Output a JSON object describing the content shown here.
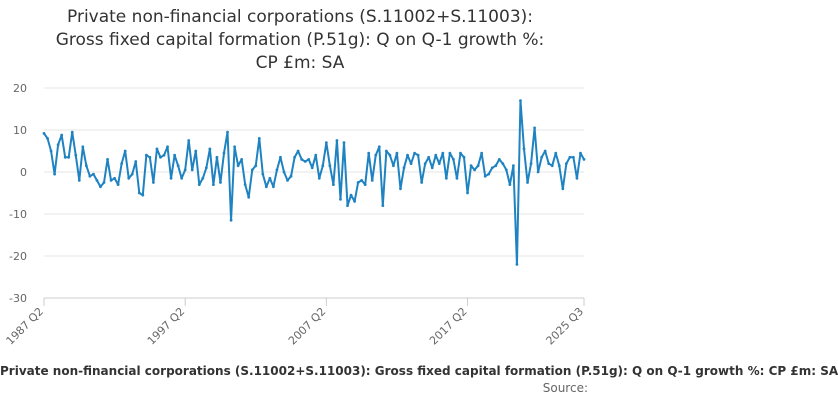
{
  "chart_data": {
    "type": "line",
    "title_lines": [
      "Private non-financial corporations (S.11002+S.11003):",
      "Gross fixed capital formation (P.51g): Q on Q-1 growth %:",
      "CP £m: SA"
    ],
    "xlabel": "",
    "ylabel": "",
    "ylim": [
      -30,
      20
    ],
    "y_ticks": [
      20,
      10,
      0,
      -10,
      -20,
      -30
    ],
    "x_tick_labels": [
      "1987 Q2",
      "1997 Q2",
      "2007 Q2",
      "2017 Q2",
      "2025 Q3"
    ],
    "grid": true,
    "legend_position": "bottom",
    "series": [
      {
        "name": "Private non-financial corporations (S.11002+S.11003): Gross fixed capital formation (P.51g): Q on Q-1 growth %: CP £m: SA",
        "color": "#1f83c1",
        "points": [
          {
            "q": "1987 Q2",
            "v": 9.2
          },
          {
            "q": "1987 Q3",
            "v": 8.0
          },
          {
            "q": "1987 Q4",
            "v": 5.0
          },
          {
            "q": "1988 Q1",
            "v": -0.5
          },
          {
            "q": "1988 Q2",
            "v": 6.5
          },
          {
            "q": "1988 Q3",
            "v": 8.8
          },
          {
            "q": "1988 Q4",
            "v": 3.5
          },
          {
            "q": "1989 Q1",
            "v": 3.5
          },
          {
            "q": "1989 Q2",
            "v": 9.5
          },
          {
            "q": "1989 Q3",
            "v": 4.0
          },
          {
            "q": "1989 Q4",
            "v": -2.0
          },
          {
            "q": "1990 Q1",
            "v": 6.0
          },
          {
            "q": "1990 Q2",
            "v": 1.5
          },
          {
            "q": "1990 Q3",
            "v": -1.0
          },
          {
            "q": "1990 Q4",
            "v": -0.5
          },
          {
            "q": "1991 Q1",
            "v": -2.0
          },
          {
            "q": "1991 Q2",
            "v": -3.5
          },
          {
            "q": "1991 Q3",
            "v": -2.5
          },
          {
            "q": "1991 Q4",
            "v": 3.0
          },
          {
            "q": "1992 Q1",
            "v": -2.0
          },
          {
            "q": "1992 Q2",
            "v": -1.5
          },
          {
            "q": "1992 Q3",
            "v": -3.0
          },
          {
            "q": "1992 Q4",
            "v": 2.0
          },
          {
            "q": "1993 Q1",
            "v": 5.0
          },
          {
            "q": "1993 Q2",
            "v": -1.5
          },
          {
            "q": "1993 Q3",
            "v": -0.5
          },
          {
            "q": "1993 Q4",
            "v": 2.5
          },
          {
            "q": "1994 Q1",
            "v": -5.0
          },
          {
            "q": "1994 Q2",
            "v": -5.5
          },
          {
            "q": "1994 Q3",
            "v": 4.0
          },
          {
            "q": "1994 Q4",
            "v": 3.5
          },
          {
            "q": "1995 Q1",
            "v": -2.5
          },
          {
            "q": "1995 Q2",
            "v": 5.5
          },
          {
            "q": "1995 Q3",
            "v": 3.5
          },
          {
            "q": "1995 Q4",
            "v": 4.0
          },
          {
            "q": "1996 Q1",
            "v": 6.0
          },
          {
            "q": "1996 Q2",
            "v": -1.5
          },
          {
            "q": "1996 Q3",
            "v": 4.0
          },
          {
            "q": "1996 Q4",
            "v": 1.5
          },
          {
            "q": "1997 Q1",
            "v": -1.5
          },
          {
            "q": "1997 Q2",
            "v": 0.5
          },
          {
            "q": "1997 Q3",
            "v": 7.5
          },
          {
            "q": "1997 Q4",
            "v": 0.5
          },
          {
            "q": "1998 Q1",
            "v": 5.0
          },
          {
            "q": "1998 Q2",
            "v": -3.0
          },
          {
            "q": "1998 Q3",
            "v": -1.5
          },
          {
            "q": "1998 Q4",
            "v": 1.0
          },
          {
            "q": "1999 Q1",
            "v": 5.5
          },
          {
            "q": "1999 Q2",
            "v": -3.0
          },
          {
            "q": "1999 Q3",
            "v": 3.5
          },
          {
            "q": "1999 Q4",
            "v": -2.5
          },
          {
            "q": "2000 Q1",
            "v": 4.5
          },
          {
            "q": "2000 Q2",
            "v": 9.5
          },
          {
            "q": "2000 Q3",
            "v": -11.5
          },
          {
            "q": "2000 Q4",
            "v": 6.0
          },
          {
            "q": "2001 Q1",
            "v": 1.5
          },
          {
            "q": "2001 Q2",
            "v": 3.0
          },
          {
            "q": "2001 Q3",
            "v": -3.0
          },
          {
            "q": "2001 Q4",
            "v": -6.0
          },
          {
            "q": "2002 Q1",
            "v": 0.5
          },
          {
            "q": "2002 Q2",
            "v": 1.5
          },
          {
            "q": "2002 Q3",
            "v": 8.0
          },
          {
            "q": "2002 Q4",
            "v": -0.5
          },
          {
            "q": "2003 Q1",
            "v": -3.5
          },
          {
            "q": "2003 Q2",
            "v": -1.5
          },
          {
            "q": "2003 Q3",
            "v": -3.5
          },
          {
            "q": "2003 Q4",
            "v": 0.5
          },
          {
            "q": "2004 Q1",
            "v": 3.5
          },
          {
            "q": "2004 Q2",
            "v": 0.0
          },
          {
            "q": "2004 Q3",
            "v": -2.0
          },
          {
            "q": "2004 Q4",
            "v": -1.0
          },
          {
            "q": "2005 Q1",
            "v": 3.5
          },
          {
            "q": "2005 Q2",
            "v": 5.0
          },
          {
            "q": "2005 Q3",
            "v": 3.0
          },
          {
            "q": "2005 Q4",
            "v": 2.5
          },
          {
            "q": "2006 Q1",
            "v": 3.0
          },
          {
            "q": "2006 Q2",
            "v": 1.0
          },
          {
            "q": "2006 Q3",
            "v": 4.0
          },
          {
            "q": "2006 Q4",
            "v": -1.5
          },
          {
            "q": "2007 Q1",
            "v": 1.5
          },
          {
            "q": "2007 Q2",
            "v": 7.0
          },
          {
            "q": "2007 Q3",
            "v": 1.5
          },
          {
            "q": "2007 Q4",
            "v": -3.0
          },
          {
            "q": "2008 Q1",
            "v": 7.5
          },
          {
            "q": "2008 Q2",
            "v": -6.5
          },
          {
            "q": "2008 Q3",
            "v": 7.0
          },
          {
            "q": "2008 Q4",
            "v": -8.0
          },
          {
            "q": "2009 Q1",
            "v": -5.5
          },
          {
            "q": "2009 Q2",
            "v": -7.0
          },
          {
            "q": "2009 Q3",
            "v": -2.5
          },
          {
            "q": "2009 Q4",
            "v": -2.0
          },
          {
            "q": "2010 Q1",
            "v": -3.0
          },
          {
            "q": "2010 Q2",
            "v": 4.5
          },
          {
            "q": "2010 Q3",
            "v": -2.0
          },
          {
            "q": "2010 Q4",
            "v": 4.0
          },
          {
            "q": "2011 Q1",
            "v": 6.0
          },
          {
            "q": "2011 Q2",
            "v": -8.0
          },
          {
            "q": "2011 Q3",
            "v": 5.0
          },
          {
            "q": "2011 Q4",
            "v": 4.0
          },
          {
            "q": "2012 Q1",
            "v": 1.5
          },
          {
            "q": "2012 Q2",
            "v": 4.5
          },
          {
            "q": "2012 Q3",
            "v": -4.0
          },
          {
            "q": "2012 Q4",
            "v": 1.0
          },
          {
            "q": "2013 Q1",
            "v": 4.0
          },
          {
            "q": "2013 Q2",
            "v": 2.0
          },
          {
            "q": "2013 Q3",
            "v": 4.5
          },
          {
            "q": "2013 Q4",
            "v": 4.0
          },
          {
            "q": "2014 Q1",
            "v": -2.5
          },
          {
            "q": "2014 Q2",
            "v": 2.0
          },
          {
            "q": "2014 Q3",
            "v": 3.5
          },
          {
            "q": "2014 Q4",
            "v": 1.0
          },
          {
            "q": "2015 Q1",
            "v": 4.0
          },
          {
            "q": "2015 Q2",
            "v": 2.0
          },
          {
            "q": "2015 Q3",
            "v": 4.5
          },
          {
            "q": "2015 Q4",
            "v": -1.5
          },
          {
            "q": "2016 Q1",
            "v": 4.5
          },
          {
            "q": "2016 Q2",
            "v": 3.0
          },
          {
            "q": "2016 Q3",
            "v": -1.5
          },
          {
            "q": "2016 Q4",
            "v": 4.5
          },
          {
            "q": "2017 Q1",
            "v": 3.5
          },
          {
            "q": "2017 Q2",
            "v": -5.0
          },
          {
            "q": "2017 Q3",
            "v": 1.5
          },
          {
            "q": "2017 Q4",
            "v": 0.5
          },
          {
            "q": "2018 Q1",
            "v": 1.5
          },
          {
            "q": "2018 Q2",
            "v": 4.5
          },
          {
            "q": "2018 Q3",
            "v": -1.0
          },
          {
            "q": "2018 Q4",
            "v": -0.5
          },
          {
            "q": "2019 Q1",
            "v": 1.0
          },
          {
            "q": "2019 Q2",
            "v": 1.5
          },
          {
            "q": "2019 Q3",
            "v": 3.0
          },
          {
            "q": "2019 Q4",
            "v": 2.0
          },
          {
            "q": "2020 Q1",
            "v": 0.5
          },
          {
            "q": "2020 Q2",
            "v": -3.0
          },
          {
            "q": "2020 Q3",
            "v": 1.5
          },
          {
            "q": "2020 Q4",
            "v": -22.0
          },
          {
            "q": "2021 Q1",
            "v": 17.0
          },
          {
            "q": "2021 Q2",
            "v": 5.5
          },
          {
            "q": "2021 Q3",
            "v": -2.5
          },
          {
            "q": "2021 Q4",
            "v": 2.0
          },
          {
            "q": "2022 Q1",
            "v": 10.5
          },
          {
            "q": "2022 Q2",
            "v": 0.0
          },
          {
            "q": "2022 Q3",
            "v": 3.5
          },
          {
            "q": "2022 Q4",
            "v": 5.0
          },
          {
            "q": "2023 Q1",
            "v": 2.0
          },
          {
            "q": "2023 Q2",
            "v": 1.5
          },
          {
            "q": "2023 Q3",
            "v": 4.5
          },
          {
            "q": "2023 Q4",
            "v": 1.5
          },
          {
            "q": "2024 Q1",
            "v": -4.0
          },
          {
            "q": "2024 Q2",
            "v": 2.0
          },
          {
            "q": "2024 Q3",
            "v": 3.5
          },
          {
            "q": "2024 Q4",
            "v": 3.5
          },
          {
            "q": "2025 Q1",
            "v": -1.5
          },
          {
            "q": "2025 Q2",
            "v": 4.5
          },
          {
            "q": "2025 Q3",
            "v": 3.0
          }
        ]
      }
    ]
  },
  "legend": {
    "label": "Private non-financial corporations (S.11002+S.11003): Gross fixed capital formation (P.51g): Q on Q-1 growth %: CP £m: SA"
  },
  "credits": {
    "text": "Source:"
  },
  "colors": {
    "series": "#1f83c1",
    "grid": "#e6e6e6",
    "axis": "#cccccc"
  }
}
